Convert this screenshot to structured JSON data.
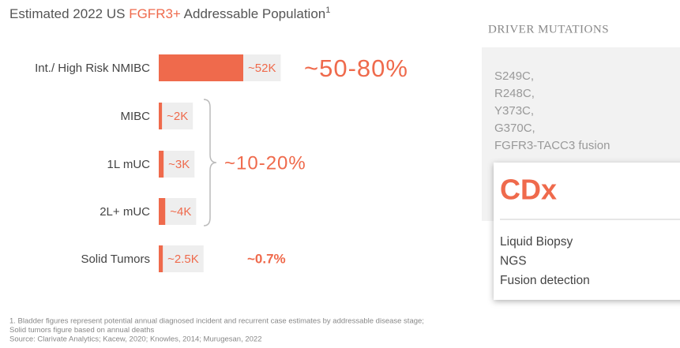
{
  "chart_data": {
    "type": "bar",
    "title": "Estimated 2022 US",
    "title_highlight": "FGFR3+",
    "title_rest": "Addressable Population",
    "title_note": "1",
    "categories": [
      "Int./ High Risk NMIBC",
      "MIBC",
      "1L mUC",
      "2L+ mUC",
      "Solid Tumors"
    ],
    "values": [
      52000,
      2000,
      3000,
      4000,
      2500
    ],
    "value_labels": [
      "~52K",
      "~2K",
      "~3K",
      "~4K",
      "~2.5K"
    ],
    "color": "#ef6a4c",
    "annotations": [
      "~50-80%",
      "~10-20%",
      "~0.7%"
    ],
    "footnotes": [
      "1. Bladder figures represent potential annual diagnosed incident and recurrent case estimates by addressable disease stage;",
      "Solid tumors figure based on annual deaths",
      "Source: Clarivate Analytics; Kacew, 2020; Knowles, 2014; Murugesan, 2022"
    ]
  },
  "panel": {
    "heading": "DRIVER MUTATIONS",
    "mutations": [
      "S249C,",
      "R248C,",
      "Y373C,",
      "G370C,",
      "FGFR3-TACC3 fusion"
    ],
    "cdx_title": "CDx",
    "cdx_items": [
      "Liquid Biopsy",
      "NGS",
      "Fusion detection"
    ]
  }
}
